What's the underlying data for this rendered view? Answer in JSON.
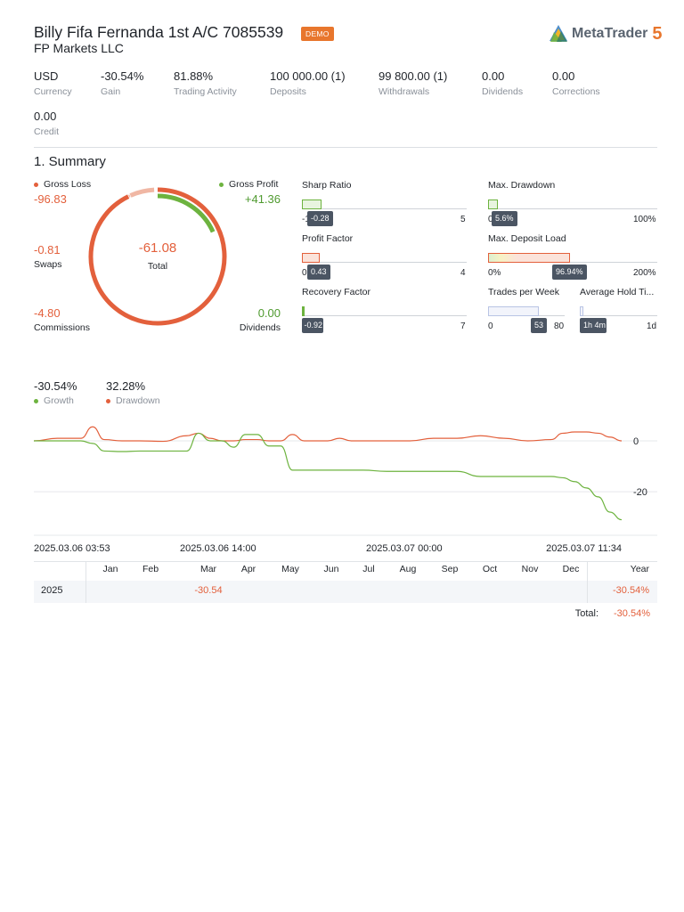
{
  "header": {
    "account_title": "Billy Fifa Fernanda 1st A/C 7085539",
    "demo_badge": "DEMO",
    "company": "FP Markets LLC",
    "logo_text": "MetaTrader",
    "logo_number": "5"
  },
  "stats": [
    {
      "value": "USD",
      "label": "Currency"
    },
    {
      "value": "-30.54%",
      "label": "Gain"
    },
    {
      "value": "81.88%",
      "label": "Trading Activity"
    },
    {
      "value": "100 000.00 (1)",
      "label": "Deposits"
    },
    {
      "value": "99 800.00 (1)",
      "label": "Withdrawals"
    },
    {
      "value": "0.00",
      "label": "Dividends"
    },
    {
      "value": "0.00",
      "label": "Corrections"
    },
    {
      "value": "0.00",
      "label": "Credit"
    }
  ],
  "summary": {
    "title": "1. Summary",
    "gross_loss_label": "Gross Loss",
    "gross_loss_value": "-96.83",
    "gross_profit_label": "Gross Profit",
    "gross_profit_value": "+41.36",
    "swaps_value": "-0.81",
    "swaps_label": "Swaps",
    "commissions_value": "-4.80",
    "commissions_label": "Commissions",
    "dividends_value": "0.00",
    "dividends_label": "Dividends",
    "total_value": "-61.08",
    "total_label": "Total",
    "colors": {
      "loss": "#e3603c",
      "profit": "#6db33f",
      "muted": "#f0b7a4"
    }
  },
  "gauges": {
    "sharp_ratio": {
      "label": "Sharp Ratio",
      "min": "-1",
      "max": "5",
      "value": "-0.28",
      "fraction": 0.12
    },
    "max_drawdown": {
      "label": "Max. Drawdown",
      "min": "0",
      "max": "100%",
      "value": "5.6%",
      "fraction": 0.056
    },
    "profit_factor": {
      "label": "Profit Factor",
      "min": "0",
      "max": "4",
      "value": "0.43",
      "fraction": 0.1075
    },
    "max_deposit_load": {
      "label": "Max. Deposit Load",
      "min": "0%",
      "max": "200%",
      "value": "96.94%",
      "fraction": 0.4847
    },
    "recovery_factor": {
      "label": "Recovery Factor",
      "min": "-1",
      "max": "7",
      "value": "-0.92",
      "fraction": 0.01
    },
    "trades_per_week": {
      "label": "Trades per Week",
      "min": "0",
      "max": "80",
      "value": "53",
      "fraction": 0.6625
    },
    "avg_hold_time": {
      "label": "Average Hold Ti...",
      "min": "",
      "max": "1d",
      "value": "1h 4m",
      "fraction": 0.045
    }
  },
  "growth_chart": {
    "growth_value": "-30.54%",
    "growth_label": "Growth",
    "drawdown_value": "32.28%",
    "drawdown_label": "Drawdown",
    "colors": {
      "growth": "#6db33f",
      "drawdown": "#e3603c"
    }
  },
  "chart_data": {
    "type": "line",
    "title": "",
    "xlabel": "",
    "ylabel": "",
    "x_tick_labels": [
      "2025.03.06 03:53",
      "2025.03.06 14:00",
      "2025.03.07 00:00",
      "2025.03.07 11:34"
    ],
    "y_tick_labels": [
      "0",
      "-20"
    ],
    "ylim": [
      -35,
      7
    ],
    "grid": true,
    "x": [
      0,
      0.04,
      0.08,
      0.1,
      0.12,
      0.15,
      0.18,
      0.22,
      0.26,
      0.28,
      0.3,
      0.32,
      0.34,
      0.36,
      0.38,
      0.4,
      0.42,
      0.44,
      0.46,
      0.48,
      0.5,
      0.52,
      0.54,
      0.56,
      0.6,
      0.64,
      0.68,
      0.72,
      0.76,
      0.8,
      0.84,
      0.88,
      0.9,
      0.92,
      0.94,
      0.96,
      0.98,
      1.0
    ],
    "series": [
      {
        "name": "Growth",
        "values": [
          0,
          0,
          0,
          -1,
          -4,
          -4.2,
          -4,
          -4,
          -4,
          3,
          0,
          0,
          -2.5,
          2.5,
          2.5,
          -2,
          -2,
          -11.5,
          -11.5,
          -11.5,
          -11.5,
          -11.5,
          -11.5,
          -11.5,
          -12,
          -12,
          -12,
          -12,
          -14,
          -14,
          -14,
          -14,
          -14.5,
          -16,
          -18.5,
          -22,
          -28,
          -31
        ]
      },
      {
        "name": "Drawdown",
        "values": [
          0,
          1,
          1,
          5.5,
          0.5,
          0,
          0,
          -0.2,
          2,
          3,
          1,
          0,
          0,
          0.5,
          0.5,
          0,
          0,
          2.5,
          0,
          0,
          0,
          1,
          0,
          0,
          0,
          0,
          1,
          1,
          2,
          1,
          0,
          0.5,
          3,
          3.5,
          3.5,
          3,
          1.5,
          0
        ]
      }
    ]
  },
  "monthly_table": {
    "months": [
      "Jan",
      "Feb",
      "Mar",
      "Apr",
      "May",
      "Jun",
      "Jul",
      "Aug",
      "Sep",
      "Oct",
      "Nov",
      "Dec"
    ],
    "year_header": "Year",
    "rows": [
      {
        "year": "2025",
        "values": [
          "",
          "",
          "-30.54",
          "",
          "",
          "",
          "",
          "",
          "",
          "",
          "",
          ""
        ],
        "year_total": "-30.54%"
      }
    ],
    "total_label": "Total:",
    "total_value": "-30.54%"
  }
}
